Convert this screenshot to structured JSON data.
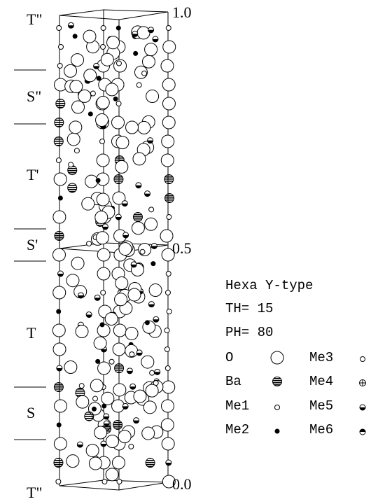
{
  "layer_labels": [
    "T\"",
    "S\"",
    "T'",
    "S'",
    "T",
    "S",
    "T\""
  ],
  "scale_labels": [
    "1.0",
    "0.5",
    "0.0"
  ],
  "legend": {
    "title": "Hexa Y-type",
    "angles": [
      "TH= 15",
      "PH= 80"
    ],
    "entries": [
      "O",
      "Ba",
      "Me1",
      "Me2",
      "Me3",
      "Me4",
      "Me5",
      "Me6"
    ]
  }
}
